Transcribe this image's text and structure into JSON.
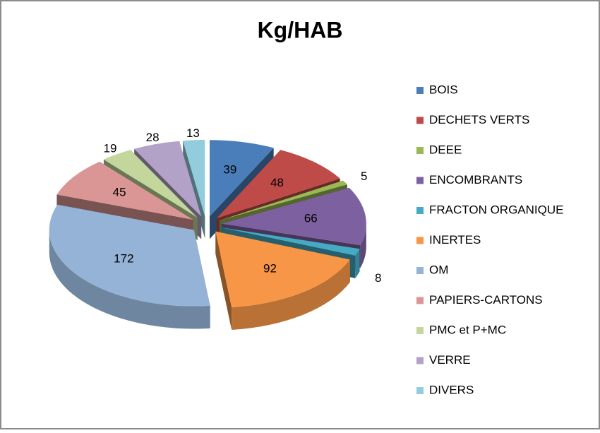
{
  "chart_data": {
    "type": "pie",
    "title": "Kg/HAB",
    "categories": [
      "BOIS",
      "DECHETS VERTS",
      "DEEE",
      "ENCOMBRANTS",
      "FRACTON ORGANIQUE",
      "INERTES",
      "OM",
      "PAPIERS-CARTONS",
      "PMC et P+MC",
      "VERRE",
      "DIVERS"
    ],
    "values": [
      39,
      48,
      5,
      66,
      8,
      92,
      172,
      45,
      19,
      28,
      13
    ],
    "colors": [
      "#4a7ebb",
      "#be4b48",
      "#98b954",
      "#7d60a0",
      "#46aac5",
      "#f79646",
      "#94b3d6",
      "#da9694",
      "#c3d69b",
      "#b3a2c7",
      "#93cddd"
    ],
    "legend": "right"
  }
}
